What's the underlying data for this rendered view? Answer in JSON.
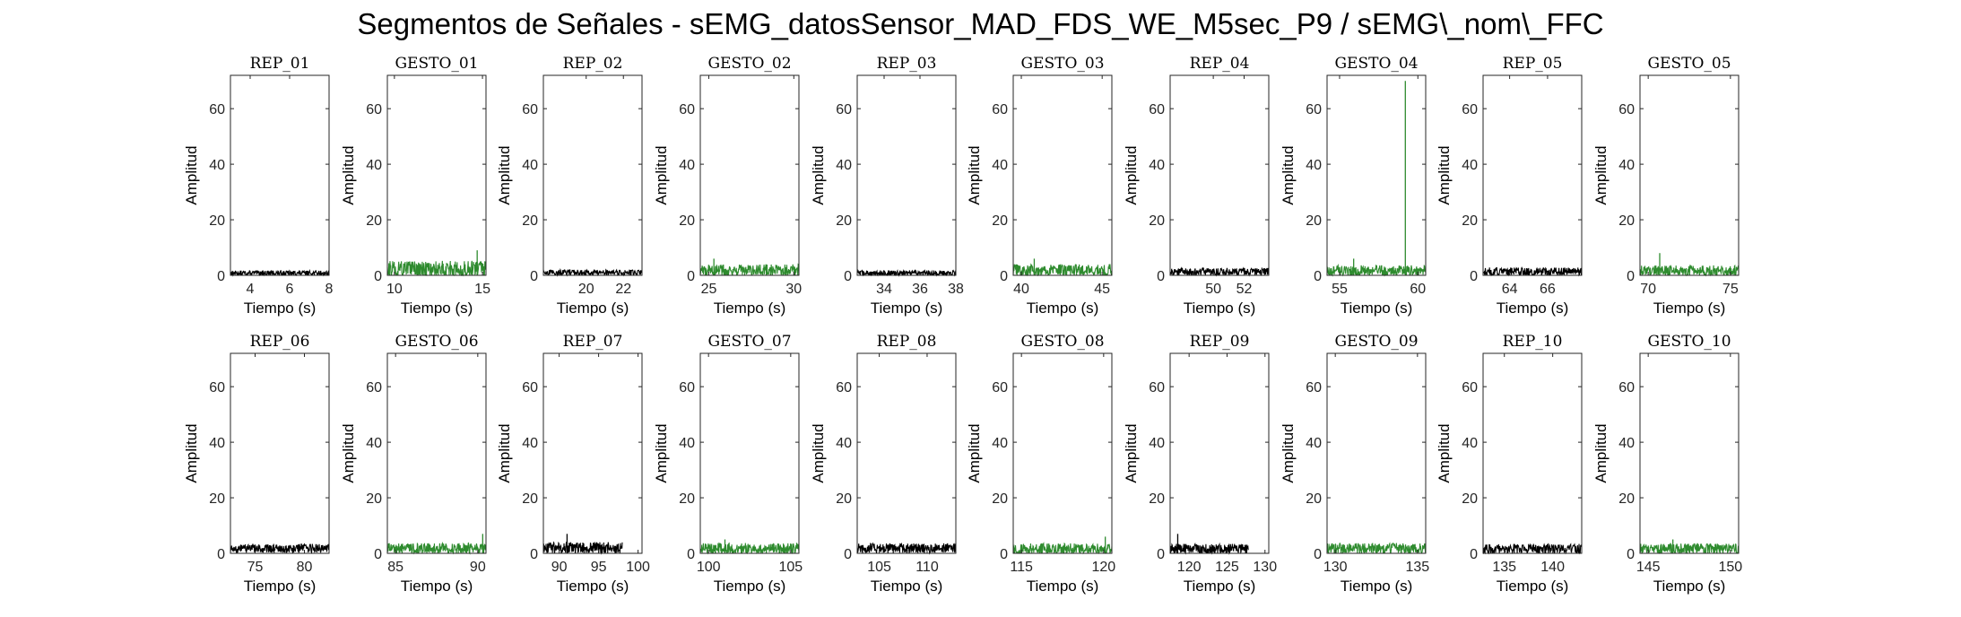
{
  "figure": {
    "title": "Segmentos de Señales - sEMG_datosSensor_MAD_FDS_WE_M5sec_P9 / sEMG\\_nom\\_FFC"
  },
  "colors": {
    "rep": "#000000",
    "gesto": "#2e8b2e"
  },
  "chart_data": [
    {
      "type": "line",
      "title": "REP_01",
      "kind": "rep",
      "xlim": [
        3,
        8
      ],
      "ylim": [
        0,
        72
      ],
      "xticks": [
        4,
        6,
        8
      ],
      "yticks": [
        0,
        20,
        40,
        60
      ],
      "xlabel": "Tiempo (s)",
      "ylabel": "Amplitud",
      "signal": {
        "base": 0.8,
        "noise": 0.9,
        "spikes": []
      },
      "grid": false
    },
    {
      "type": "line",
      "title": "GESTO_01",
      "kind": "gesto",
      "xlim": [
        9.6,
        15.2
      ],
      "ylim": [
        0,
        72
      ],
      "xticks": [
        10,
        15
      ],
      "yticks": [
        0,
        20,
        40,
        60
      ],
      "xlabel": "Tiempo (s)",
      "ylabel": "Amplitud",
      "signal": {
        "base": 2.2,
        "noise": 3.0,
        "spikes": [
          [
            14.7,
            9
          ]
        ]
      },
      "grid": false
    },
    {
      "type": "line",
      "title": "REP_02",
      "kind": "rep",
      "xlim": [
        17.7,
        23
      ],
      "ylim": [
        0,
        72
      ],
      "xticks": [
        20,
        22
      ],
      "yticks": [
        0,
        20,
        40,
        60
      ],
      "xlabel": "Tiempo (s)",
      "ylabel": "Amplitud",
      "signal": {
        "base": 1.0,
        "noise": 1.0,
        "spikes": []
      },
      "grid": false
    },
    {
      "type": "line",
      "title": "GESTO_02",
      "kind": "gesto",
      "xlim": [
        24.5,
        30.3
      ],
      "ylim": [
        0,
        72
      ],
      "xticks": [
        25,
        30
      ],
      "yticks": [
        0,
        20,
        40,
        60
      ],
      "xlabel": "Tiempo (s)",
      "ylabel": "Amplitud",
      "signal": {
        "base": 1.8,
        "noise": 2.2,
        "spikes": [
          [
            25.3,
            6
          ]
        ]
      },
      "grid": false
    },
    {
      "type": "line",
      "title": "REP_03",
      "kind": "rep",
      "xlim": [
        32.5,
        38
      ],
      "ylim": [
        0,
        72
      ],
      "xticks": [
        34,
        36,
        38
      ],
      "yticks": [
        0,
        20,
        40,
        60
      ],
      "xlabel": "Tiempo (s)",
      "ylabel": "Amplitud",
      "signal": {
        "base": 0.8,
        "noise": 1.0,
        "spikes": []
      },
      "grid": false
    },
    {
      "type": "line",
      "title": "GESTO_03",
      "kind": "gesto",
      "xlim": [
        39.5,
        45.6
      ],
      "ylim": [
        0,
        72
      ],
      "xticks": [
        40,
        45
      ],
      "yticks": [
        0,
        20,
        40,
        60
      ],
      "xlabel": "Tiempo (s)",
      "ylabel": "Amplitud",
      "signal": {
        "base": 1.8,
        "noise": 2.3,
        "spikes": [
          [
            40.8,
            6
          ]
        ]
      },
      "grid": false
    },
    {
      "type": "line",
      "title": "REP_04",
      "kind": "rep",
      "xlim": [
        47.2,
        53.6
      ],
      "ylim": [
        0,
        72
      ],
      "xticks": [
        50,
        52
      ],
      "yticks": [
        0,
        20,
        40,
        60
      ],
      "xlabel": "Tiempo (s)",
      "ylabel": "Amplitud",
      "signal": {
        "base": 1.3,
        "noise": 1.4,
        "spikes": []
      },
      "grid": false
    },
    {
      "type": "line",
      "title": "GESTO_04",
      "kind": "gesto",
      "xlim": [
        54.2,
        60.5
      ],
      "ylim": [
        0,
        72
      ],
      "xticks": [
        55,
        60
      ],
      "yticks": [
        0,
        20,
        40,
        60
      ],
      "xlabel": "Tiempo (s)",
      "ylabel": "Amplitud",
      "signal": {
        "base": 1.6,
        "noise": 2.0,
        "spikes": [
          [
            55.9,
            6
          ],
          [
            59.2,
            70
          ]
        ]
      },
      "grid": false
    },
    {
      "type": "line",
      "title": "REP_05",
      "kind": "rep",
      "xlim": [
        62.6,
        67.8
      ],
      "ylim": [
        0,
        72
      ],
      "xticks": [
        64,
        66
      ],
      "yticks": [
        0,
        20,
        40,
        60
      ],
      "xlabel": "Tiempo (s)",
      "ylabel": "Amplitud",
      "signal": {
        "base": 1.3,
        "noise": 1.5,
        "spikes": []
      },
      "grid": false
    },
    {
      "type": "line",
      "title": "GESTO_05",
      "kind": "gesto",
      "xlim": [
        69.5,
        75.5
      ],
      "ylim": [
        0,
        72
      ],
      "xticks": [
        70,
        75
      ],
      "yticks": [
        0,
        20,
        40,
        60
      ],
      "xlabel": "Tiempo (s)",
      "ylabel": "Amplitud",
      "signal": {
        "base": 1.6,
        "noise": 2.0,
        "spikes": [
          [
            70.7,
            8
          ]
        ]
      },
      "grid": false
    },
    {
      "type": "line",
      "title": "REP_06",
      "kind": "rep",
      "xlim": [
        72.5,
        82.5
      ],
      "ylim": [
        0,
        72
      ],
      "xticks": [
        75,
        80
      ],
      "yticks": [
        0,
        20,
        40,
        60
      ],
      "xlabel": "Tiempo (s)",
      "ylabel": "Amplitud",
      "signal": {
        "base": 1.8,
        "noise": 1.6,
        "spikes": []
      },
      "grid": false
    },
    {
      "type": "line",
      "title": "GESTO_06",
      "kind": "gesto",
      "xlim": [
        84.5,
        90.5
      ],
      "ylim": [
        0,
        72
      ],
      "xticks": [
        85,
        90
      ],
      "yticks": [
        0,
        20,
        40,
        60
      ],
      "xlabel": "Tiempo (s)",
      "ylabel": "Amplitud",
      "signal": {
        "base": 1.7,
        "noise": 2.0,
        "spikes": [
          [
            90.3,
            7
          ]
        ]
      },
      "grid": false
    },
    {
      "type": "line",
      "title": "REP_07",
      "kind": "rep",
      "xlim": [
        88,
        100.5
      ],
      "ylim": [
        0,
        72
      ],
      "xticks": [
        90,
        95,
        100
      ],
      "yticks": [
        0,
        20,
        40,
        60
      ],
      "xlabel": "Tiempo (s)",
      "ylabel": "Amplitud",
      "signal": {
        "base": 2.0,
        "noise": 2.0,
        "spikes": [
          [
            91,
            7
          ]
        ],
        "end": 98
      },
      "grid": false
    },
    {
      "type": "line",
      "title": "GESTO_07",
      "kind": "gesto",
      "xlim": [
        99.5,
        105.5
      ],
      "ylim": [
        0,
        72
      ],
      "xticks": [
        100,
        105
      ],
      "yticks": [
        0,
        20,
        40,
        60
      ],
      "xlabel": "Tiempo (s)",
      "ylabel": "Amplitud",
      "signal": {
        "base": 1.7,
        "noise": 2.0,
        "spikes": [
          [
            101,
            5
          ]
        ]
      },
      "grid": false
    },
    {
      "type": "line",
      "title": "REP_08",
      "kind": "rep",
      "xlim": [
        102.7,
        113
      ],
      "ylim": [
        0,
        72
      ],
      "xticks": [
        105,
        110
      ],
      "yticks": [
        0,
        20,
        40,
        60
      ],
      "xlabel": "Tiempo (s)",
      "ylabel": "Amplitud",
      "signal": {
        "base": 1.8,
        "noise": 1.8,
        "spikes": []
      },
      "grid": false
    },
    {
      "type": "line",
      "title": "GESTO_08",
      "kind": "gesto",
      "xlim": [
        114.5,
        120.5
      ],
      "ylim": [
        0,
        72
      ],
      "xticks": [
        115,
        120
      ],
      "yticks": [
        0,
        20,
        40,
        60
      ],
      "xlabel": "Tiempo (s)",
      "ylabel": "Amplitud",
      "signal": {
        "base": 1.6,
        "noise": 2.0,
        "spikes": [
          [
            120.1,
            6
          ]
        ]
      },
      "grid": false
    },
    {
      "type": "line",
      "title": "REP_09",
      "kind": "rep",
      "xlim": [
        117.5,
        130.5
      ],
      "ylim": [
        0,
        72
      ],
      "xticks": [
        120,
        125,
        130
      ],
      "yticks": [
        0,
        20,
        40,
        60
      ],
      "xlabel": "Tiempo (s)",
      "ylabel": "Amplitud",
      "signal": {
        "base": 1.6,
        "noise": 1.8,
        "spikes": [
          [
            118.5,
            7
          ]
        ],
        "end": 127.8
      },
      "grid": false
    },
    {
      "type": "line",
      "title": "GESTO_09",
      "kind": "gesto",
      "xlim": [
        129.5,
        135.5
      ],
      "ylim": [
        0,
        72
      ],
      "xticks": [
        130,
        135
      ],
      "yticks": [
        0,
        20,
        40,
        60
      ],
      "xlabel": "Tiempo (s)",
      "ylabel": "Amplitud",
      "signal": {
        "base": 1.7,
        "noise": 2.0,
        "spikes": []
      },
      "grid": false
    },
    {
      "type": "line",
      "title": "REP_10",
      "kind": "rep",
      "xlim": [
        132.8,
        143
      ],
      "ylim": [
        0,
        72
      ],
      "xticks": [
        135,
        140
      ],
      "yticks": [
        0,
        20,
        40,
        60
      ],
      "xlabel": "Tiempo (s)",
      "ylabel": "Amplitud",
      "signal": {
        "base": 1.6,
        "noise": 1.8,
        "spikes": []
      },
      "grid": false
    },
    {
      "type": "line",
      "title": "GESTO_10",
      "kind": "gesto",
      "xlim": [
        144.5,
        150.5
      ],
      "ylim": [
        0,
        72
      ],
      "xticks": [
        145,
        150
      ],
      "yticks": [
        0,
        20,
        40,
        60
      ],
      "xlabel": "Tiempo (s)",
      "ylabel": "Amplitud",
      "signal": {
        "base": 1.6,
        "noise": 2.0,
        "spikes": [
          [
            146.5,
            5
          ]
        ]
      },
      "grid": false
    }
  ]
}
